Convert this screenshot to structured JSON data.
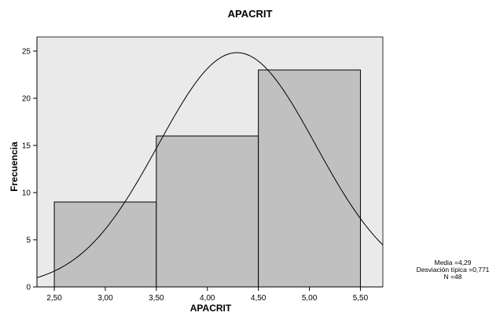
{
  "chart_data": {
    "type": "bar",
    "title": "APACRIT",
    "xlabel": "APACRIT",
    "ylabel": "Frecuencia",
    "bins": [
      {
        "start": 2.5,
        "end": 3.5,
        "value": 9
      },
      {
        "start": 3.5,
        "end": 4.5,
        "value": 16
      },
      {
        "start": 4.5,
        "end": 5.5,
        "value": 23
      }
    ],
    "xlim": [
      2.33,
      5.72
    ],
    "ylim": [
      0,
      26.5
    ],
    "x_ticks": [
      2.5,
      3.0,
      3.5,
      4.0,
      4.5,
      5.0,
      5.5
    ],
    "x_tick_labels": [
      "2,50",
      "3,00",
      "3,50",
      "4,00",
      "4,50",
      "5,00",
      "5,50"
    ],
    "y_ticks": [
      0,
      5,
      10,
      15,
      20,
      25
    ],
    "y_tick_labels": [
      "0",
      "5",
      "10",
      "15",
      "20",
      "25"
    ],
    "normal_curve": {
      "mean": 4.29,
      "sd": 0.771,
      "n": 48,
      "bin_width": 1.0
    },
    "grid": false,
    "legend": "none",
    "colors": {
      "bar_fill": "#c0c0c0",
      "plot_bg": "#eaeaea",
      "line": "#000000"
    }
  },
  "stats_box": {
    "mean_text": "Media =4,29",
    "sd_text": "Desviación típica =0,771",
    "n_text": "N =48"
  }
}
